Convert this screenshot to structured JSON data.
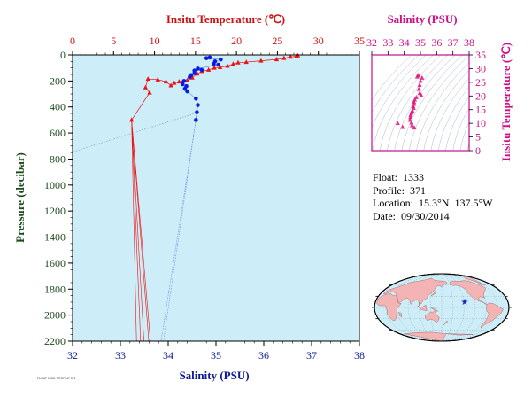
{
  "chart_data": [
    {
      "type": "scatter",
      "name": "profile-plot",
      "x_bottom_label": "Salinity (PSU)",
      "x_top_label": "Insitu Temperature (℃)",
      "ylabel": "Pressure (decibar)",
      "salinity_lim": [
        32,
        38
      ],
      "temperature_lim": [
        0,
        35
      ],
      "pressure_lim": [
        2200,
        0
      ],
      "salinity_ticks": [
        "32",
        "33",
        "34",
        "35",
        "36",
        "37",
        "38"
      ],
      "temperature_ticks": [
        "0",
        "5",
        "10",
        "15",
        "20",
        "25",
        "30",
        "35"
      ],
      "pressure_ticks": [
        "0",
        "200",
        "400",
        "600",
        "800",
        "1000",
        "1200",
        "1400",
        "1600",
        "1800",
        "2000",
        "2200"
      ],
      "background": "#cdeef8",
      "temperature_color": "#ee1111",
      "salinity_color": "#0a1adf",
      "temperature_points": [
        [
          27.5,
          5
        ],
        [
          27.3,
          10
        ],
        [
          26.6,
          15
        ],
        [
          25.8,
          25
        ],
        [
          24.9,
          35
        ],
        [
          23.0,
          45
        ],
        [
          21.2,
          55
        ],
        [
          20.2,
          60
        ],
        [
          19.6,
          70
        ],
        [
          18.9,
          85
        ],
        [
          18.0,
          95
        ],
        [
          17.3,
          100
        ],
        [
          16.6,
          115
        ],
        [
          15.8,
          125
        ],
        [
          15.2,
          145
        ],
        [
          14.6,
          175
        ],
        [
          14.0,
          195
        ],
        [
          13.0,
          205
        ],
        [
          12.4,
          215
        ],
        [
          12.0,
          235
        ],
        [
          11.4,
          205
        ],
        [
          10.4,
          190
        ],
        [
          9.2,
          185
        ],
        [
          8.9,
          250
        ],
        [
          9.4,
          290
        ],
        [
          7.2,
          500
        ]
      ],
      "temperature_deep": [
        [
          7.8,
          2200
        ],
        [
          8.3,
          2200
        ],
        [
          8.7,
          2200
        ],
        [
          9.3,
          2200
        ],
        [
          9.5,
          2200
        ]
      ],
      "salinity_points": [
        [
          34.87,
          20
        ],
        [
          34.8,
          25
        ],
        [
          35.1,
          35
        ],
        [
          34.98,
          50
        ],
        [
          34.95,
          70
        ],
        [
          35.05,
          75
        ],
        [
          34.62,
          105
        ],
        [
          34.7,
          115
        ],
        [
          34.55,
          120
        ],
        [
          34.55,
          140
        ],
        [
          34.48,
          155
        ],
        [
          34.45,
          170
        ],
        [
          34.33,
          200
        ],
        [
          34.3,
          225
        ],
        [
          34.38,
          240
        ],
        [
          34.35,
          260
        ],
        [
          34.4,
          280
        ],
        [
          34.58,
          335
        ],
        [
          34.62,
          385
        ],
        [
          34.6,
          440
        ],
        [
          34.58,
          500
        ]
      ],
      "salinity_deep": [
        [
          33.85,
          2200
        ],
        [
          33.9,
          2200
        ]
      ],
      "guide_line": [
        [
          32.0,
          750
        ],
        [
          34.55,
          450
        ]
      ]
    },
    {
      "type": "scatter",
      "name": "ts-diagram",
      "xlabel": "Salinity (PSU)",
      "ylabel": "Insitu Temperature (℃)",
      "salinity_lim": [
        32,
        38
      ],
      "temperature_lim": [
        0,
        35
      ],
      "salinity_ticks": [
        "32",
        "33",
        "34",
        "35",
        "36",
        "37",
        "38"
      ],
      "temperature_ticks": [
        "0",
        "5",
        "10",
        "15",
        "20",
        "25",
        "30",
        "35"
      ],
      "point_color": "#e0107a",
      "points": [
        [
          34.87,
          27.5
        ],
        [
          34.8,
          27.0
        ],
        [
          35.1,
          26.6
        ],
        [
          35.0,
          25.5
        ],
        [
          34.95,
          24.0
        ],
        [
          34.9,
          22.5
        ],
        [
          34.95,
          21.0
        ],
        [
          35.05,
          20.2
        ],
        [
          34.75,
          19.5
        ],
        [
          34.65,
          18.6
        ],
        [
          34.6,
          17.8
        ],
        [
          34.62,
          17.0
        ],
        [
          34.55,
          16.2
        ],
        [
          34.58,
          15.5
        ],
        [
          34.5,
          14.6
        ],
        [
          34.45,
          13.8
        ],
        [
          34.4,
          13.0
        ],
        [
          34.38,
          12.2
        ],
        [
          34.35,
          11.2
        ],
        [
          34.45,
          10.2
        ],
        [
          34.48,
          9.2
        ],
        [
          34.62,
          8.4
        ],
        [
          33.6,
          10.0
        ],
        [
          33.9,
          8.6
        ]
      ]
    }
  ],
  "info": {
    "float_label": "Float:",
    "float_value": "1333",
    "profile_label": "Profile:",
    "profile_value": "371",
    "location_label": "Location:",
    "location_value": "15.3°N  137.5°W",
    "date_label": "Date:",
    "date_value": "09/30/2014"
  },
  "map": {
    "ocean_color": "#cdeef8",
    "land_color": "#f4b4b4",
    "marker_color": "#1422c8",
    "marker_lon": -137.5,
    "marker_lat": 15.3
  },
  "footer_text": "FLOAT 1333, PROFILE 371"
}
